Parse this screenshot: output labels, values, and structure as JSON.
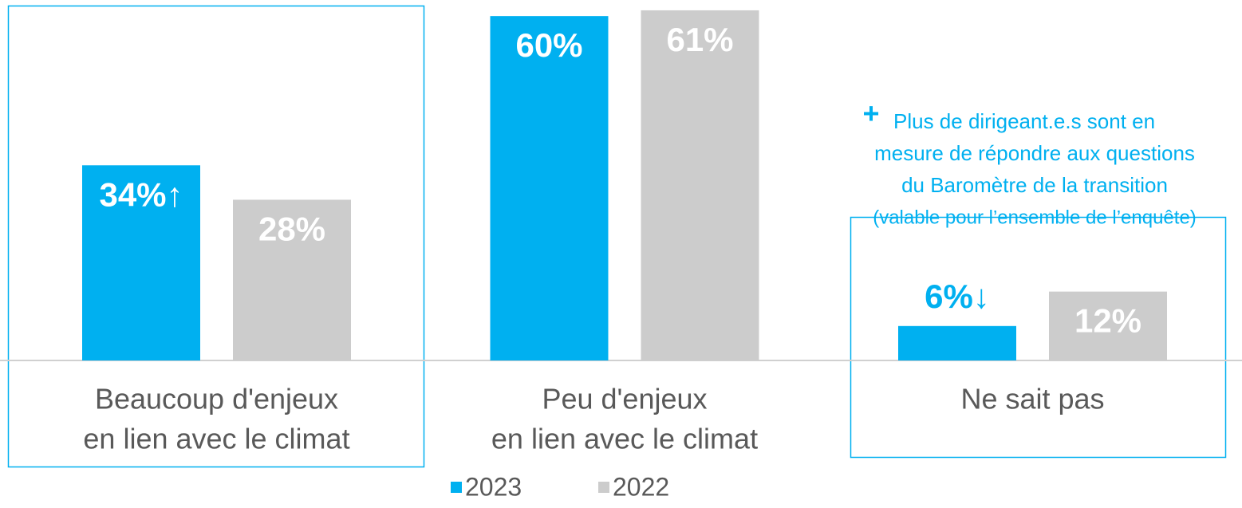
{
  "chart_data": {
    "type": "bar",
    "categories": [
      [
        "Beaucoup d'enjeux",
        "en lien avec le climat"
      ],
      [
        "Peu d'enjeux",
        "en lien avec le climat"
      ],
      [
        "Ne sait pas"
      ]
    ],
    "series": [
      {
        "name": "2023",
        "color": "#00b0f0",
        "values": [
          34,
          60,
          6
        ],
        "value_labels": [
          "34%↑",
          "60%",
          "6%↓"
        ]
      },
      {
        "name": "2022",
        "color": "#cccccc",
        "values": [
          28,
          61,
          12
        ],
        "value_labels": [
          "28%",
          "61%",
          "12%"
        ]
      }
    ],
    "ylim": [
      0,
      62.8
    ],
    "annotation": {
      "symbol": "+",
      "lines": [
        "Plus de dirigeant.e.s sont en",
        "mesure de répondre aux questions",
        "du Baromètre de la transition",
        "(valable pour l’ensemble de l’enquête)"
      ]
    }
  }
}
